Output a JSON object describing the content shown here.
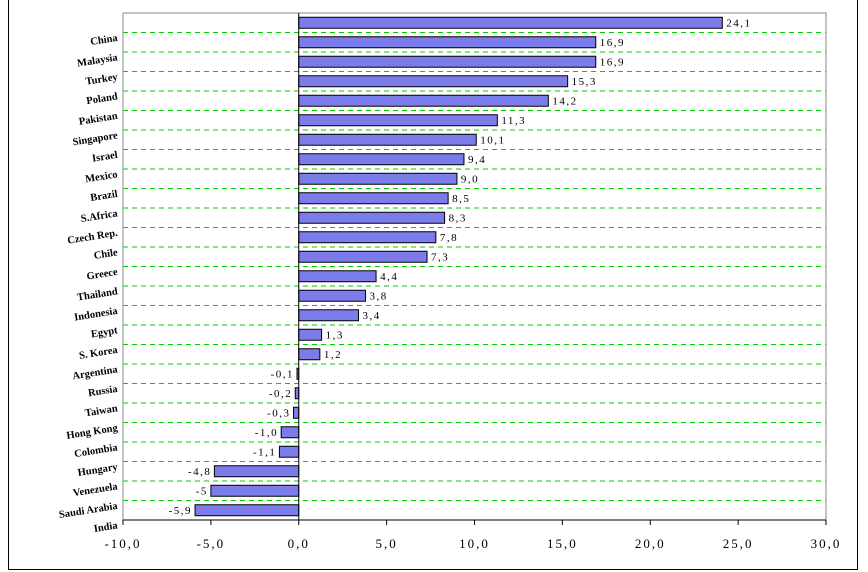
{
  "chart_data": {
    "type": "bar",
    "orientation": "horizontal",
    "title": "",
    "xlabel": "",
    "ylabel": "",
    "xlim": [
      -10,
      30
    ],
    "x_ticks": [
      -10,
      -5,
      0,
      5,
      10,
      15,
      20,
      25,
      30
    ],
    "x_tick_labels": [
      "-10,0",
      "-5,0",
      "0,0",
      "5,0",
      "10,0",
      "15,0",
      "20,0",
      "25,0",
      "30,0"
    ],
    "grid": "horizontal dashed",
    "grid_color": "#00cc00",
    "bar_color": "#7b7bea",
    "bar_edge_color": "#000000",
    "categories": [
      "China",
      "Malaysia",
      "Turkey",
      "Poland",
      "Pakistan",
      "Singapore",
      "Israel",
      "Mexico",
      "Brazil",
      "S.Africa",
      "Czech Rep.",
      "Chile",
      "Greece",
      "Thailand",
      "Indonesia",
      "Egypt",
      "S. Korea",
      "Argentina",
      "Russia",
      "Taiwan",
      "Hong Kong",
      "Colombia",
      "Hungary",
      "Venezuela",
      "Saudi Arabia",
      "India"
    ],
    "values": [
      24.1,
      16.9,
      16.9,
      15.3,
      14.2,
      11.3,
      10.1,
      9.4,
      9.0,
      8.5,
      8.3,
      7.8,
      7.3,
      4.4,
      3.8,
      3.4,
      1.3,
      1.2,
      -0.1,
      -0.2,
      -0.3,
      -1.0,
      -1.1,
      -4.8,
      -5,
      -5.9
    ],
    "value_labels": [
      "24,1",
      "16,9",
      "16,9",
      "15,3",
      "14,2",
      "11,3",
      "10,1",
      "9,4",
      "9,0",
      "8,5",
      "8,3",
      "7,8",
      "7,3",
      "4,4",
      "3,8",
      "3,4",
      "1,3",
      "1,2",
      "-0,1",
      "-0,2",
      "-0,3",
      "-1,0",
      "-1,1",
      "-4,8",
      "-5",
      "-5,9"
    ]
  }
}
